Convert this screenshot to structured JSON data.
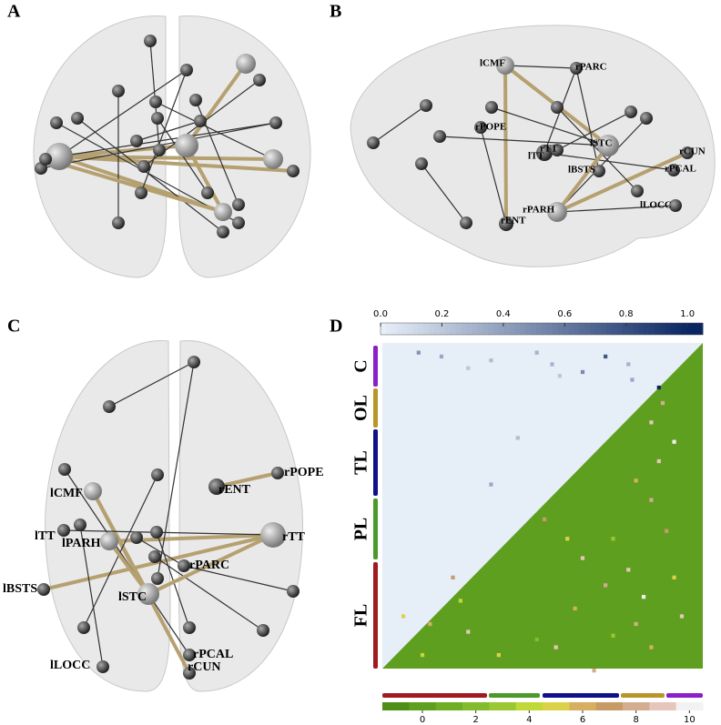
{
  "panels": [
    {
      "label": "A"
    },
    {
      "label": "B",
      "node_labels": [
        "lCMF",
        "rPARC",
        "rPOPE",
        "rTT",
        "lTT",
        "lSTC",
        "lBSTS",
        "rCUN",
        "rPCAL",
        "rPARH",
        "lLOCC",
        "rENT"
      ]
    },
    {
      "label": "C",
      "node_labels": [
        "rPOPE",
        "rENT",
        "lCMF",
        "lTT",
        "lPARH",
        "rTT",
        "rPARC",
        "lBSTS",
        "lSTC",
        "rPCAL",
        "rCUN",
        "lLOCC"
      ]
    },
    {
      "label": "D",
      "group_labels": [
        "C",
        "OL",
        "TL",
        "PL",
        "FL"
      ],
      "colorbar_top": {
        "lim": [
          0,
          1.05
        ],
        "ticks": [
          {
            "value": 0,
            "label": "0.0"
          },
          0.2,
          0.4,
          0.6,
          0.8,
          {
            "value": 1,
            "label": "1.0"
          }
        ]
      },
      "colorbar_bottom": {
        "lim": [
          -1.5,
          10.5
        ],
        "ticks": [
          0,
          2,
          4,
          6,
          8,
          10
        ]
      },
      "upper_cells": [
        [
          2,
          9,
          0.45
        ],
        [
          3,
          15,
          0.35
        ],
        [
          4,
          28,
          0.25
        ],
        [
          2,
          40,
          0.3
        ],
        [
          5,
          44,
          0.3
        ],
        [
          3,
          58,
          0.75
        ],
        [
          7,
          52,
          0.5
        ],
        [
          5,
          64,
          0.3
        ],
        [
          11,
          72,
          1.0
        ],
        [
          9,
          65,
          0.35
        ],
        [
          24,
          35,
          0.25
        ],
        [
          36,
          28,
          0.35
        ],
        [
          6,
          22,
          0.2
        ],
        [
          8,
          46,
          0.2
        ]
      ],
      "lower_cells": [
        [
          70,
          5,
          5
        ],
        [
          72,
          12,
          6
        ],
        [
          74,
          22,
          9
        ],
        [
          66,
          20,
          4
        ],
        [
          60,
          18,
          7
        ],
        [
          80,
          30,
          5
        ],
        [
          78,
          45,
          9
        ],
        [
          68,
          50,
          6
        ],
        [
          75,
          60,
          3
        ],
        [
          62,
          58,
          8
        ],
        [
          55,
          52,
          9
        ],
        [
          50,
          48,
          5
        ],
        [
          45,
          42,
          7
        ],
        [
          72,
          66,
          8
        ],
        [
          78,
          70,
          6
        ],
        [
          65,
          68,
          10
        ],
        [
          58,
          64,
          9
        ],
        [
          50,
          60,
          3
        ],
        [
          40,
          70,
          8
        ],
        [
          35,
          66,
          6
        ],
        [
          30,
          72,
          9
        ],
        [
          48,
          74,
          7
        ],
        [
          60,
          76,
          5
        ],
        [
          70,
          78,
          9
        ],
        [
          20,
          70,
          9
        ],
        [
          25,
          76,
          10
        ],
        [
          15,
          73,
          8
        ],
        [
          80,
          10,
          4
        ],
        [
          76,
          40,
          2
        ],
        [
          84,
          55,
          8
        ]
      ]
    }
  ]
}
